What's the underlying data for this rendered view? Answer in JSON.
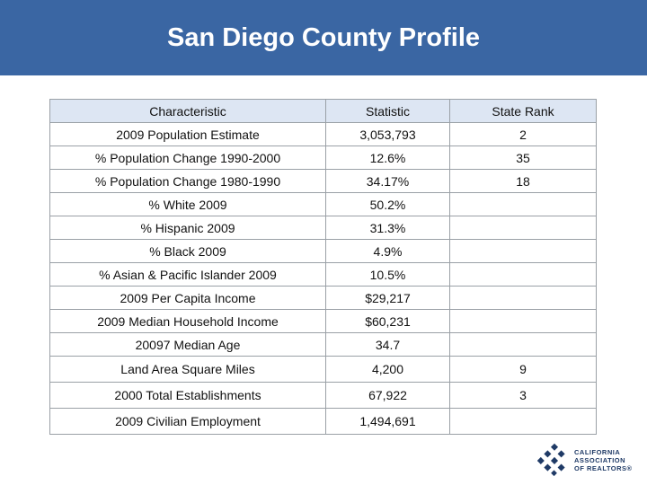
{
  "title": "San Diego County Profile",
  "table": {
    "headers": [
      "Characteristic",
      "Statistic",
      "State Rank"
    ],
    "rows": [
      [
        "2009 Population Estimate",
        "3,053,793",
        "2"
      ],
      [
        "% Population Change 1990-2000",
        "12.6%",
        "35"
      ],
      [
        "% Population Change 1980-1990",
        "34.17%",
        "18"
      ],
      [
        "% White 2009",
        "50.2%",
        ""
      ],
      [
        "% Hispanic 2009",
        "31.3%",
        ""
      ],
      [
        "% Black 2009",
        "4.9%",
        ""
      ],
      [
        "% Asian & Pacific Islander 2009",
        "10.5%",
        ""
      ],
      [
        "2009 Per Capita Income",
        "$29,217",
        ""
      ],
      [
        "2009 Median Household Income",
        "$60,231",
        ""
      ],
      [
        "20097 Median Age",
        "34.7",
        ""
      ],
      [
        "Land Area Square Miles",
        "4,200",
        "9"
      ],
      [
        "2000 Total Establishments",
        "67,922",
        "3"
      ],
      [
        "2009 Civilian Employment",
        "1,494,691",
        ""
      ]
    ]
  },
  "logo": {
    "icon": "car-logo-icon",
    "line1": "CALIFORNIA",
    "line2": "ASSOCIATION",
    "line3": "OF REALTORS®"
  },
  "colors": {
    "header_bg": "#3a66a3",
    "table_header_bg": "#dde6f3"
  }
}
